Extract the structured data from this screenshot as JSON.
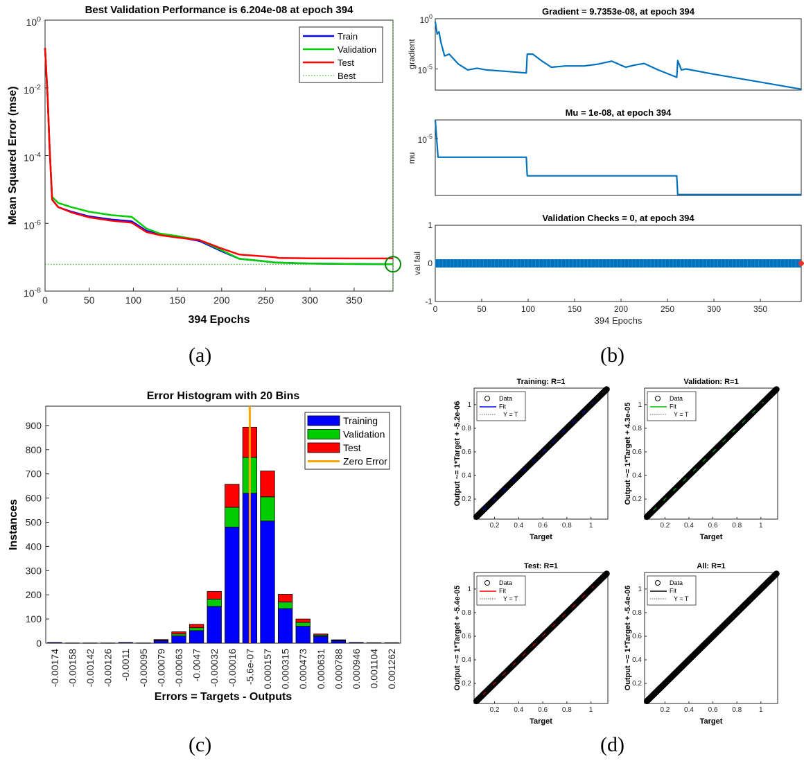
{
  "captions": {
    "a": "(a)",
    "b": "(b)",
    "c": "(c)",
    "d": "(d)"
  },
  "colors": {
    "train": "#0000ff",
    "validation": "#00cc00",
    "test": "#ff0000",
    "best": "#00aa00",
    "matlab_blue": "#0072bd",
    "zero_error": "#ffa500",
    "best_circle": "#008800",
    "fit_all": "#000000"
  },
  "chart_data": [
    {
      "id": "perf",
      "type": "line",
      "title": "Best Validation Performance is 6.204e-08 at epoch 394",
      "xlabel": "394 Epochs",
      "ylabel": "Mean Squared Error  (mse)",
      "xlim": [
        0,
        394
      ],
      "ylim_log10": [
        -8,
        0
      ],
      "x_ticks": [
        0,
        50,
        100,
        150,
        200,
        250,
        300,
        350
      ],
      "y_ticks": [
        {
          "b": "10",
          "e": "0"
        },
        {
          "b": "10",
          "e": "-2"
        },
        {
          "b": "10",
          "e": "-4"
        },
        {
          "b": "10",
          "e": "-6"
        },
        {
          "b": "10",
          "e": "-8"
        }
      ],
      "legend": {
        "position": "top-right",
        "entries": [
          "Train",
          "Validation",
          "Test",
          "Best"
        ]
      },
      "series": [
        {
          "name": "Train",
          "color": "#0000ff",
          "points": [
            [
              0,
              0.15
            ],
            [
              3,
              0.005
            ],
            [
              5,
              0.0002
            ],
            [
              8,
              5e-06
            ],
            [
              15,
              3e-06
            ],
            [
              30,
              2.2e-06
            ],
            [
              50,
              1.6e-06
            ],
            [
              75,
              1.3e-06
            ],
            [
              98,
              1.15e-06
            ],
            [
              115,
              6e-07
            ],
            [
              130,
              4.8e-07
            ],
            [
              150,
              4e-07
            ],
            [
              175,
              3e-07
            ],
            [
              200,
              1.5e-07
            ],
            [
              220,
              9e-08
            ],
            [
              250,
              7.5e-08
            ],
            [
              260,
              7e-08
            ],
            [
              300,
              6.5e-08
            ],
            [
              350,
              6.3e-08
            ],
            [
              394,
              6.2e-08
            ]
          ]
        },
        {
          "name": "Validation",
          "color": "#00cc00",
          "points": [
            [
              0,
              0.15
            ],
            [
              3,
              0.005
            ],
            [
              5,
              0.0002
            ],
            [
              8,
              6e-06
            ],
            [
              15,
              4e-06
            ],
            [
              30,
              3e-06
            ],
            [
              50,
              2.2e-06
            ],
            [
              75,
              1.75e-06
            ],
            [
              98,
              1.55e-06
            ],
            [
              115,
              7e-07
            ],
            [
              130,
              5e-07
            ],
            [
              150,
              4.2e-07
            ],
            [
              175,
              3.2e-07
            ],
            [
              200,
              1.6e-07
            ],
            [
              220,
              9e-08
            ],
            [
              250,
              7.5e-08
            ],
            [
              260,
              7e-08
            ],
            [
              300,
              6.5e-08
            ],
            [
              350,
              6.3e-08
            ],
            [
              394,
              6.204e-08
            ]
          ]
        },
        {
          "name": "Test",
          "color": "#ff0000",
          "points": [
            [
              0,
              0.15
            ],
            [
              3,
              0.005
            ],
            [
              5,
              0.0002
            ],
            [
              8,
              5e-06
            ],
            [
              15,
              3e-06
            ],
            [
              30,
              2.1e-06
            ],
            [
              50,
              1.5e-06
            ],
            [
              75,
              1.2e-06
            ],
            [
              98,
              1.05e-06
            ],
            [
              115,
              5.5e-07
            ],
            [
              130,
              4.5e-07
            ],
            [
              150,
              3.8e-07
            ],
            [
              175,
              3.2e-07
            ],
            [
              200,
              1.8e-07
            ],
            [
              220,
              1.2e-07
            ],
            [
              250,
              1.05e-07
            ],
            [
              260,
              1e-07
            ],
            [
              265,
              9.5e-08
            ],
            [
              300,
              9.3e-08
            ],
            [
              350,
              9.2e-08
            ],
            [
              394,
              9.2e-08
            ]
          ]
        }
      ],
      "best": {
        "epoch": 394,
        "value": 6.204e-08
      }
    },
    {
      "id": "gradient",
      "type": "line",
      "title": "Gradient = 9.7353e-08, at epoch 394",
      "ylabel": "gradient",
      "xlim": [
        0,
        394
      ],
      "ylim_log10": [
        -7.1,
        0
      ],
      "y_ticks": [
        {
          "b": "10",
          "e": "0"
        },
        {
          "b": "10",
          "e": "-5"
        }
      ],
      "points": [
        [
          0,
          0.5
        ],
        [
          2,
          0.03
        ],
        [
          4,
          0.05
        ],
        [
          6,
          0.005
        ],
        [
          10,
          0.0002
        ],
        [
          15,
          0.0003
        ],
        [
          25,
          3e-05
        ],
        [
          35,
          8e-06
        ],
        [
          45,
          1.2e-05
        ],
        [
          55,
          8e-06
        ],
        [
          75,
          6e-06
        ],
        [
          98,
          4e-06
        ],
        [
          99,
          0.0003
        ],
        [
          105,
          0.0003
        ],
        [
          115,
          6e-05
        ],
        [
          125,
          1.5e-05
        ],
        [
          140,
          2e-05
        ],
        [
          160,
          2e-05
        ],
        [
          175,
          3e-05
        ],
        [
          190,
          6e-05
        ],
        [
          205,
          1.5e-05
        ],
        [
          215,
          2.5e-05
        ],
        [
          225,
          3.5e-05
        ],
        [
          240,
          8e-06
        ],
        [
          260,
          1.5e-06
        ],
        [
          261,
          7e-05
        ],
        [
          265,
          8e-06
        ],
        [
          270,
          1e-05
        ],
        [
          300,
          3e-06
        ],
        [
          350,
          5e-07
        ],
        [
          394,
          9.7353e-08
        ]
      ]
    },
    {
      "id": "mu",
      "type": "line",
      "title": "Mu = 1e-08, at epoch 394",
      "ylabel": "mu",
      "xlim": [
        0,
        394
      ],
      "ylim_log10": [
        -8.05,
        -4
      ],
      "y_ticks": [
        {
          "b": "10",
          "e": "-5"
        }
      ],
      "points": [
        [
          0,
          0.0001
        ],
        [
          3,
          1e-06
        ],
        [
          98,
          1e-06
        ],
        [
          99,
          1e-07
        ],
        [
          260,
          1e-07
        ],
        [
          261,
          1e-08
        ],
        [
          394,
          1e-08
        ]
      ]
    },
    {
      "id": "valfail",
      "type": "line",
      "title": "Validation Checks = 0, at epoch 394",
      "xlabel": "394 Epochs",
      "ylabel": "val fail",
      "xlim": [
        0,
        394
      ],
      "ylim": [
        -1,
        1
      ],
      "x_ticks": [
        0,
        50,
        100,
        150,
        200,
        250,
        300,
        350
      ],
      "y_ticks": [
        1,
        0,
        -1
      ],
      "value": 0,
      "epochs": 394
    },
    {
      "id": "hist",
      "type": "bar",
      "title": "Error Histogram with 20 Bins",
      "xlabel": "Errors = Targets - Outputs",
      "ylabel": "Instances",
      "ylim": [
        0,
        980
      ],
      "y_ticks": [
        0,
        100,
        200,
        300,
        400,
        500,
        600,
        700,
        800,
        900
      ],
      "categories": [
        "-0.00174",
        "-0.00158",
        "-0.00142",
        "-0.00126",
        "-0.0011",
        "-0.00095",
        "-0.00079",
        "-0.00063",
        "-0.0047",
        "-0.00032",
        "-0.00016",
        "-5.6e-07",
        "0.000157",
        "0.000315",
        "0.000473",
        "0.000631",
        "0.000788",
        "0.000946",
        "0.001104",
        "0.001262"
      ],
      "series": [
        {
          "name": "Training",
          "color": "#0000ff",
          "values": [
            3,
            1,
            1,
            1,
            3,
            1,
            10,
            30,
            52,
            152,
            480,
            620,
            505,
            143,
            70,
            28,
            10,
            3,
            2,
            2
          ]
        },
        {
          "name": "Validation",
          "color": "#00cc00",
          "values": [
            0,
            0,
            0,
            0,
            0,
            0,
            2,
            8,
            12,
            30,
            82,
            148,
            100,
            27,
            16,
            5,
            2,
            0,
            0,
            0
          ]
        },
        {
          "name": "Test",
          "color": "#ff0000",
          "values": [
            0,
            0,
            0,
            0,
            0,
            0,
            3,
            9,
            14,
            32,
            95,
            125,
            107,
            32,
            14,
            5,
            2,
            0,
            0,
            0
          ]
        }
      ],
      "zero_error": {
        "label": "Zero Error",
        "bin_index": 11,
        "color": "#ffa500"
      },
      "legend": {
        "position": "top-right",
        "entries": [
          "Training",
          "Validation",
          "Test",
          "Zero Error"
        ]
      }
    },
    {
      "id": "regression",
      "type": "scatter",
      "xlabel": "Target",
      "xlim": [
        0.03,
        1.14
      ],
      "ylim": [
        0.03,
        1.14
      ],
      "x_ticks": [
        0.2,
        0.4,
        0.6,
        0.8,
        1
      ],
      "y_ticks": [
        0.2,
        0.4,
        0.6,
        0.8,
        1
      ],
      "data_range": [
        0.05,
        1.13
      ],
      "legend_entries": [
        "Data",
        "Fit",
        "Y = T"
      ],
      "panels": [
        {
          "title": "Training: R=1",
          "ylabel": "Output ~= 1*Target + -5.2e-06",
          "fit_color": "#0000ff"
        },
        {
          "title": "Validation: R=1",
          "ylabel": "Output ~= 1*Target + 4.3e-05",
          "fit_color": "#00cc00"
        },
        {
          "title": "Test: R=1",
          "ylabel": "Output ~= 1*Target + -5.4e-05",
          "fit_color": "#ff0000"
        },
        {
          "title": "All: R=1",
          "ylabel": "Output ~= 1*Target + -5.4e-06",
          "fit_color": "#000000"
        }
      ]
    }
  ]
}
